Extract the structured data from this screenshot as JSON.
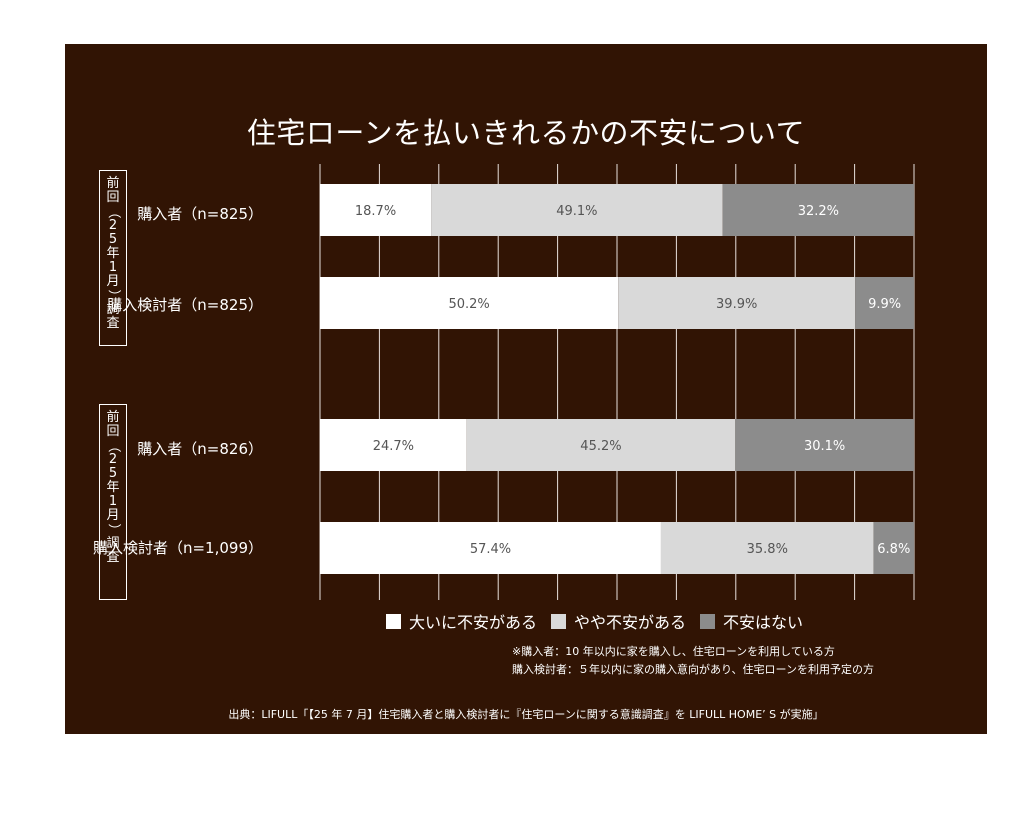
{
  "chart_data": {
    "type": "bar",
    "orientation": "horizontal",
    "stacked": true,
    "title": "住宅ローンを払いきれるかの不安について",
    "xlim": [
      0,
      100
    ],
    "grid": true,
    "legend_position": "bottom",
    "groups": [
      {
        "label": [
          "前",
          "回",
          "（",
          "2",
          "5",
          "年",
          "1",
          "月",
          "）",
          "調",
          "査"
        ]
      },
      {
        "label": [
          "前",
          "回",
          "（",
          "2",
          "5",
          "年",
          "1",
          "月",
          "）",
          "調",
          "査"
        ]
      }
    ],
    "categories": [
      "購入者（n=825）",
      "購入検討者（n=825）",
      "購入者（n=826）",
      "購入検討者（n=1,099）"
    ],
    "series": [
      {
        "name": "大いに不安がある",
        "color": "#ffffff",
        "values": [
          18.7,
          50.2,
          24.7,
          57.4
        ],
        "labels": [
          "18.7%",
          "50.2%",
          "24.7%",
          "57.4%"
        ]
      },
      {
        "name": "やや不安がある",
        "color": "#d9d9d9",
        "values": [
          49.1,
          39.9,
          45.2,
          35.8
        ],
        "labels": [
          "49.1%",
          "39.9%",
          "45.2%",
          "35.8%"
        ]
      },
      {
        "name": "不安はない",
        "color": "#8c8c8c",
        "values": [
          32.2,
          9.9,
          30.1,
          6.8
        ],
        "labels": [
          "32.2%",
          "9.9%",
          "30.1%",
          "6.8%"
        ]
      }
    ]
  },
  "notes": {
    "line1": "※購入者：10 年以内に家を購入し、住宅ローンを利用している方",
    "line2": "購入検討者：５年以内に家の購入意向があり、住宅ローンを利用予定の方"
  },
  "source": "出典：LIFULL「【25 年 7 月】住宅購入者と購入検討者に『住宅ローンに関する意識調査』を LIFULL HOME’ S が実施」"
}
